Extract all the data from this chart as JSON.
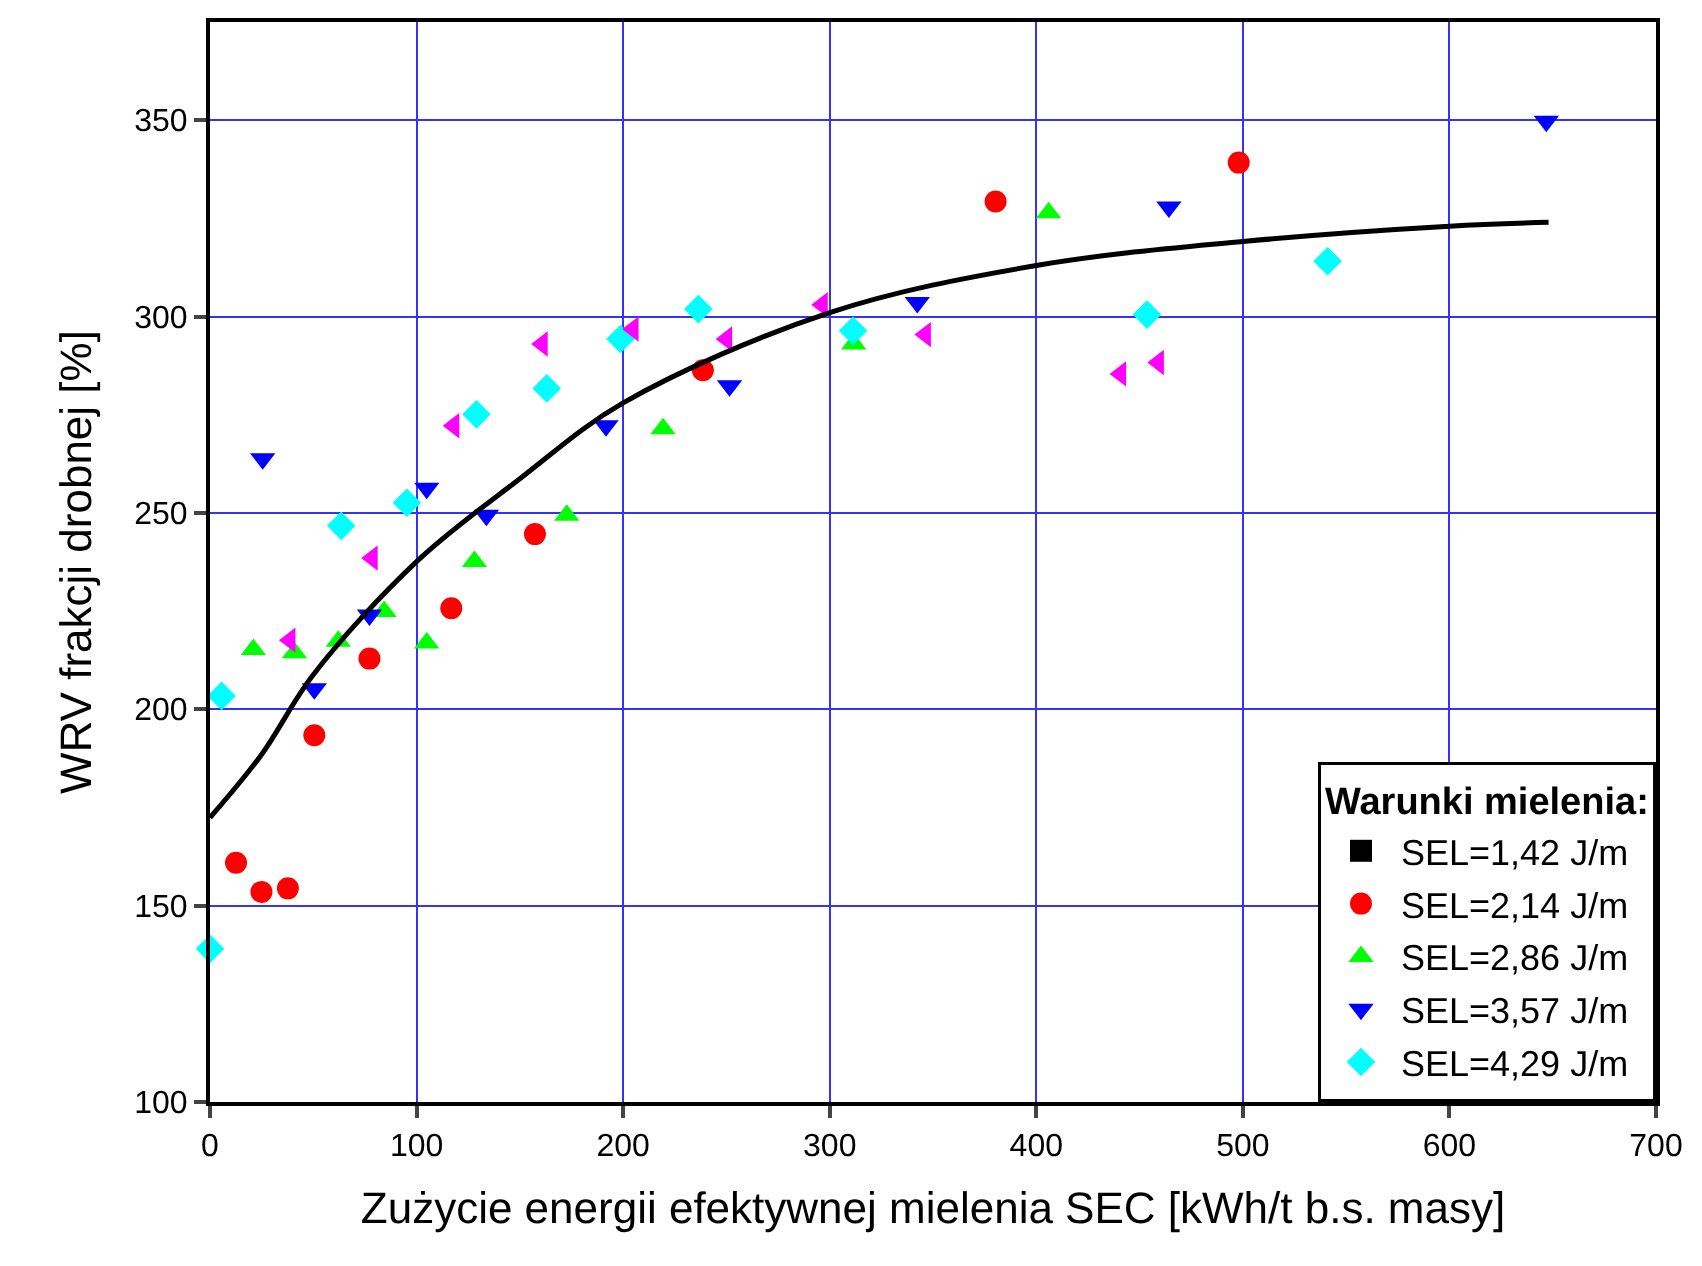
{
  "chart_data": {
    "type": "scatter",
    "xlabel": "Zużycie energii efektywnej mielenia SEC [kWh/t b.s. masy]",
    "ylabel": "WRV frakcji drobnej [%]",
    "legend_title": "Warunki mielenia:",
    "xlim": [
      0,
      700
    ],
    "xticks": [
      0,
      100,
      200,
      300,
      400,
      500,
      600,
      700
    ],
    "ylim": [
      100,
      375
    ],
    "yticks": [
      100,
      150,
      200,
      250,
      300,
      350
    ],
    "grid": true,
    "legend": "bottom right",
    "series": [
      {
        "name": "SEL=1,42 J/m",
        "color": "#000000",
        "marker": "square"
      },
      {
        "name": "SEL=2,14 J/m",
        "color": "#ff0000",
        "marker": "circle",
        "x": [
          12.6,
          24.9,
          37.7,
          50.5,
          77.2,
          116.8,
          157.3,
          238.6,
          380.3,
          498
        ],
        "values": [
          160.9,
          153.5,
          154.4,
          193.4,
          212.9,
          225.7,
          244.6,
          286.3,
          329.3,
          339.2
        ]
      },
      {
        "name": "SEL=2,86 J/m",
        "color": "#00ff00",
        "marker": "triangle",
        "x": [
          21,
          40.9,
          62.1,
          84.3,
          104.9,
          128,
          172.7,
          219.3,
          311.6,
          406
        ],
        "values": [
          215.2,
          214.4,
          217.3,
          224.9,
          216.9,
          237.6,
          249.4,
          271.4,
          293,
          326.4
        ]
      },
      {
        "name": "SEL=3,57 J/m",
        "color": "#0000ff",
        "marker": "triangle-down",
        "x": [
          25.5,
          50.5,
          77.2,
          104.9,
          133.8,
          191.7,
          251.5,
          342.4,
          464.2,
          646.9
        ],
        "values": [
          263.8,
          205.2,
          224,
          256.3,
          249.4,
          272.2,
          282.4,
          303.6,
          327.9,
          349.7
        ]
      },
      {
        "name": "SEL=4,29 J/m",
        "color": "#00ffff",
        "marker": "diamond",
        "x": [
          0,
          5.6,
          63.5,
          95.3,
          129,
          163,
          198.7,
          236.4,
          311.3,
          453.6,
          541
        ],
        "values": [
          139,
          203.4,
          246.7,
          252.6,
          275.1,
          281.7,
          294.3,
          301.9,
          296.4,
          300.5,
          314.1
        ]
      },
      {
        "color": "#ff00ff",
        "marker": "triangle-left",
        "x": [
          38.7,
          78.5,
          118,
          160.8,
          204.8,
          250.1,
          296.4,
          346.3,
          440.8,
          459.1
        ],
        "values": [
          217.6,
          238.5,
          272.2,
          293,
          296.8,
          294.3,
          303,
          295.4,
          285.4,
          288.3
        ]
      },
      {
        "type": "line",
        "color": "#000000",
        "marker": "none",
        "line_style": "solid",
        "x": [
          0,
          25,
          50,
          100,
          150,
          200,
          300,
          400,
          500,
          600,
          648
        ],
        "values": [
          172.4,
          188.5,
          208.8,
          237.6,
          258.7,
          278,
          301,
          313,
          319.1,
          323,
          324
        ]
      }
    ]
  }
}
